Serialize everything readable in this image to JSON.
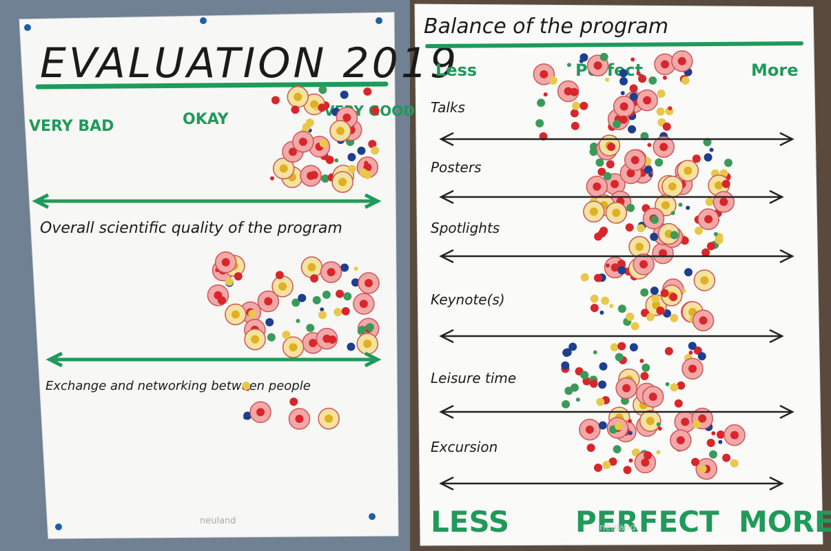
{
  "posters": [
    {
      "title": "EVALUATION 2019",
      "scale": {
        "low": "VERY BAD",
        "mid": "OKAY",
        "high": "VERY GOOD"
      },
      "questions": [
        "Overall scientific quality of the program",
        "Exchange and networking between people"
      ],
      "logo": "neuland"
    },
    {
      "title": "Balance of the program",
      "header": {
        "low": "Less",
        "mid": "Perfect",
        "high": "More"
      },
      "rows": [
        "Talks",
        "Posters",
        "Spotlights",
        "Keynote(s)",
        "Leisure time",
        "Excursion"
      ],
      "footer": {
        "low": "LESS",
        "mid": "PERFECT",
        "high": "MORE"
      },
      "logo": "neuland"
    }
  ]
}
